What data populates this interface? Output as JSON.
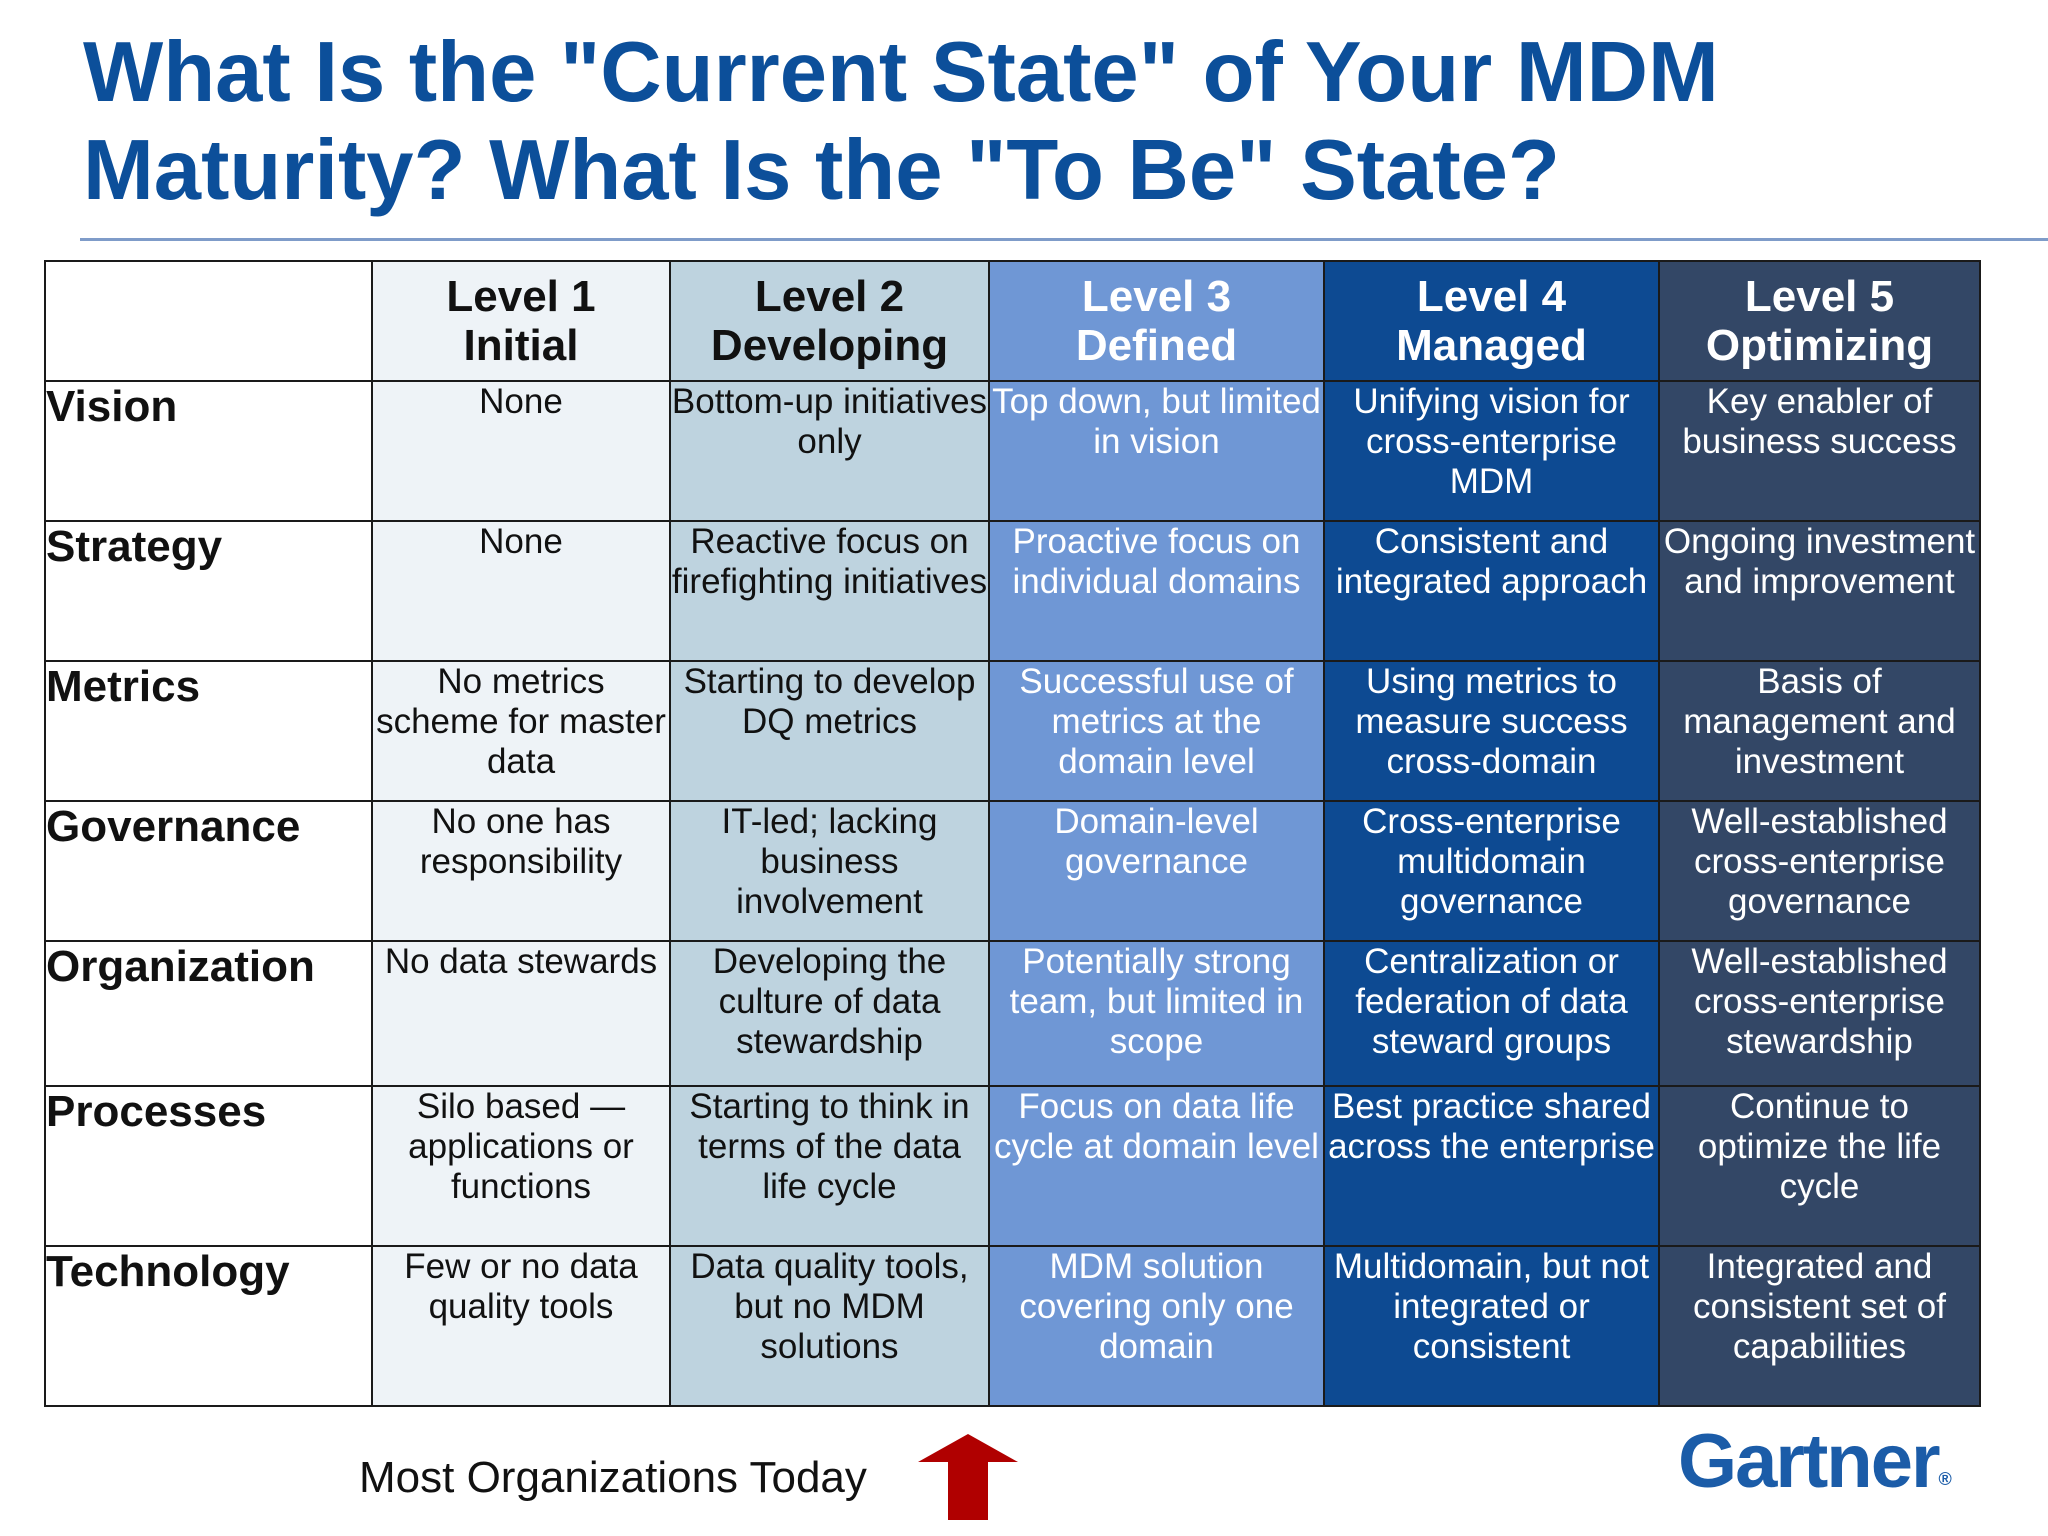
{
  "title_line1": "What Is the \"Current State\" of Your MDM",
  "title_line2": "Maturity? What Is the \"To Be\" State?",
  "levels": [
    {
      "number": "Level 1",
      "name": "Initial"
    },
    {
      "number": "Level 2",
      "name": "Developing"
    },
    {
      "number": "Level 3",
      "name": "Defined"
    },
    {
      "number": "Level 4",
      "name": "Managed"
    },
    {
      "number": "Level 5",
      "name": "Optimizing"
    }
  ],
  "rows": [
    {
      "label": "Vision",
      "cells": [
        "None",
        "Bottom-up initiatives only",
        "Top down, but limited in vision",
        "Unifying vision for cross-enterprise MDM",
        "Key enabler of business success"
      ]
    },
    {
      "label": "Strategy",
      "cells": [
        "None",
        "Reactive focus on firefighting initiatives",
        "Proactive focus on individual domains",
        "Consistent and integrated approach",
        "Ongoing investment and improvement"
      ]
    },
    {
      "label": "Metrics",
      "cells": [
        "No metrics scheme for master data",
        "Starting to develop DQ metrics",
        "Successful use of metrics at the domain level",
        "Using metrics to measure success cross-domain",
        "Basis of management and investment"
      ]
    },
    {
      "label": "Governance",
      "cells": [
        "No one has responsibility",
        "IT-led; lacking business involvement",
        "Domain-level governance",
        "Cross-enterprise multidomain governance",
        "Well-established cross-enterprise governance"
      ]
    },
    {
      "label": "Organization",
      "cells": [
        "No data stewards",
        "Developing the culture of data stewardship",
        "Potentially strong team, but limited in scope",
        "Centralization or federation of data steward groups",
        "Well-established cross-enterprise stewardship"
      ]
    },
    {
      "label": "Processes",
      "cells": [
        "Silo based — applications or functions",
        "Starting to think in terms of the data life cycle",
        "Focus on data life cycle at domain level",
        "Best practice shared across the enterprise",
        "Continue to optimize the life cycle"
      ]
    },
    {
      "label": "Technology",
      "cells": [
        "Few or no data quality tools",
        "Data quality tools, but no MDM solutions",
        "MDM solution covering only one domain",
        "Multidomain, but not integrated or consistent",
        "Integrated and consistent set of capabilities"
      ]
    }
  ],
  "footer_note": "Most Organizations Today",
  "logo_text": "Gartner",
  "logo_mark": "®",
  "colors": {
    "title": "#0c4f9a",
    "level1": "#eef3f7",
    "level2": "#bed3df",
    "level3": "#6f97d5",
    "level4": "#0d4a92",
    "level5": "#334766",
    "arrow": "#b00000",
    "logo": "#1b5ca8"
  },
  "icons": {
    "pointer": "up-arrow-icon"
  }
}
